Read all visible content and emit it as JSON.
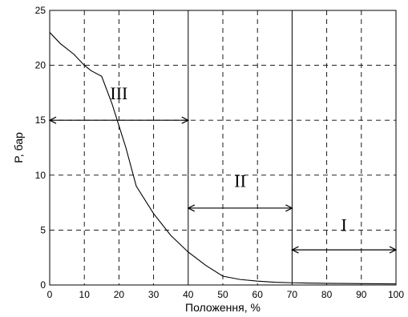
{
  "chart_data": {
    "type": "line",
    "xlabel": "Положення, %",
    "ylabel": "P, бар",
    "xlim": [
      0,
      100
    ],
    "ylim": [
      0,
      25
    ],
    "x_ticks": [
      "0",
      "10",
      "20",
      "30",
      "40",
      "50",
      "60",
      "70",
      "80",
      "90",
      "100"
    ],
    "y_ticks": [
      "0",
      "5",
      "10",
      "15",
      "20",
      "25"
    ],
    "grid": true,
    "series": [
      {
        "x": [
          0,
          3,
          7,
          10,
          12,
          15,
          18,
          20,
          22,
          25,
          30,
          35,
          40,
          45,
          50,
          55,
          60,
          65,
          70,
          80,
          90,
          100
        ],
        "y": [
          23,
          22,
          21,
          20,
          19.5,
          19,
          16.5,
          14.5,
          12.5,
          9,
          6.5,
          4.5,
          3,
          1.8,
          0.8,
          0.5,
          0.35,
          0.25,
          0.2,
          0.15,
          0.12,
          0.1
        ]
      }
    ],
    "boundaries": [
      40,
      70
    ],
    "zones": [
      {
        "label": "III",
        "x_range": [
          0,
          40
        ],
        "arrow_y": 15,
        "label_y": 17.5
      },
      {
        "label": "II",
        "x_range": [
          40,
          70
        ],
        "arrow_y": 7,
        "label_y": 9.5
      },
      {
        "label": "I",
        "x_range": [
          70,
          100
        ],
        "arrow_y": 3.2,
        "label_y": 5.5
      }
    ]
  }
}
